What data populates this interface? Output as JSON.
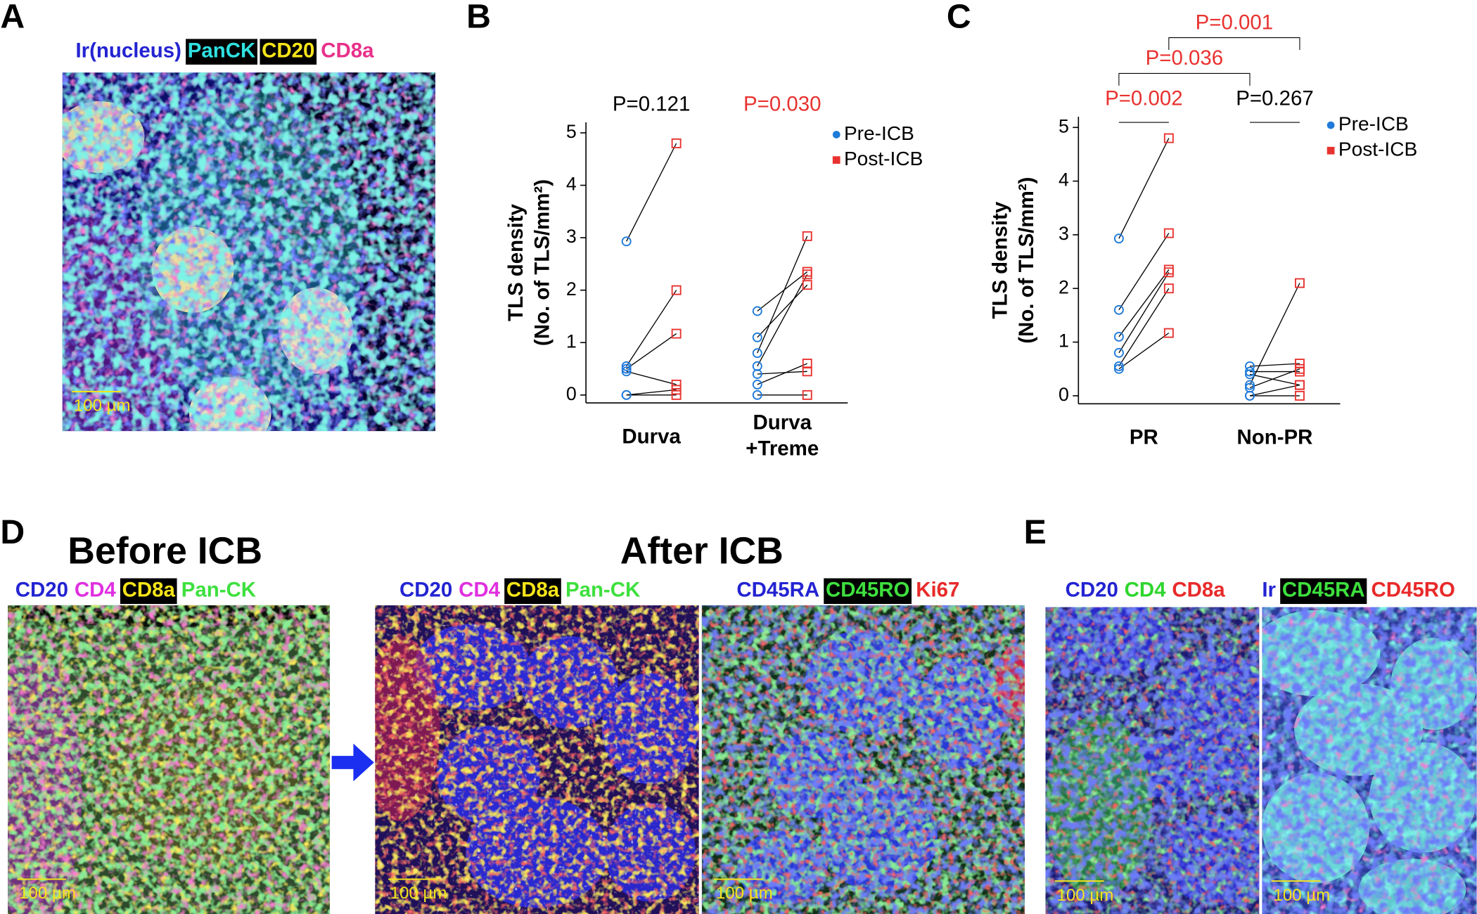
{
  "panel_labels": [
    "A",
    "B",
    "C",
    "D",
    "E"
  ],
  "panel_a": {
    "legend": [
      {
        "text": "Ir(nucleus)",
        "color": "#2323d2"
      },
      {
        "text": "PanCK",
        "color": "#2fe0e0",
        "background": "#000000"
      },
      {
        "text": "CD20",
        "color": "#f5e41a",
        "background": "#000000"
      },
      {
        "text": "CD8a",
        "color": "#e8308a"
      }
    ],
    "scale_bar": "100 µm"
  },
  "panel_d": {
    "before_title": "Before ICB",
    "after_title": "After ICB",
    "before_legend": [
      {
        "text": "CD20",
        "color": "#2323d2"
      },
      {
        "text": "CD4",
        "color": "#e02fe0"
      },
      {
        "text": "CD8a",
        "color": "#f5e41a",
        "background": "#000000"
      },
      {
        "text": "Pan-CK",
        "color": "#3ee03e"
      }
    ],
    "after_legend_1": [
      {
        "text": "CD20",
        "color": "#2323d2"
      },
      {
        "text": "CD4",
        "color": "#e02fe0"
      },
      {
        "text": "CD8a",
        "color": "#f5e41a",
        "background": "#000000"
      },
      {
        "text": "Pan-CK",
        "color": "#3ee03e"
      }
    ],
    "after_legend_2": [
      {
        "text": "CD45RA",
        "color": "#2323d2"
      },
      {
        "text": "CD45RO",
        "color": "#3ee03e",
        "background": "#000000"
      },
      {
        "text": "Ki67",
        "color": "#e82a2a"
      }
    ],
    "scale_bars": [
      "100 µm",
      "100 µm",
      "100 µm"
    ]
  },
  "panel_e": {
    "legend_1": [
      {
        "text": "CD20",
        "color": "#2323d2"
      },
      {
        "text": "CD4",
        "color": "#2fd62f"
      },
      {
        "text": "CD8a",
        "color": "#e82a2a"
      }
    ],
    "legend_2": [
      {
        "text": "Ir",
        "color": "#2323d2"
      },
      {
        "text": "CD45RA",
        "color": "#3ee03e",
        "background": "#000000"
      },
      {
        "text": "CD45RO",
        "color": "#e82a2a"
      }
    ],
    "scale_bars": [
      "100 µm",
      "100 µm"
    ]
  },
  "chart_data": [
    {
      "type": "slope",
      "y_label": [
        "TLS density",
        "(No. of TLS/mm²)"
      ],
      "categories": [
        [
          "Durva"
        ],
        [
          "Durva",
          "+Treme"
        ]
      ],
      "series": [
        {
          "name": "Pre-ICB",
          "color": "#1f7ad9",
          "marker": "circle",
          "values": [
            [
              2.93,
              0.55,
              0.5,
              0.45,
              0,
              0
            ],
            [
              1.6,
              1.1,
              0.8,
              0.55,
              0.4,
              0.2,
              0
            ]
          ]
        },
        {
          "name": "Post-ICB",
          "color": "#e8322f",
          "marker": "square",
          "values": [
            [
              4.8,
              2.0,
              1.17,
              0.2,
              0.1,
              0
            ],
            [
              2.35,
              2.1,
              3.03,
              2.3,
              0.45,
              0.6,
              0
            ]
          ]
        }
      ],
      "pvalues": [
        {
          "text": "P=0.121",
          "color": "#000000"
        },
        {
          "text": "P=0.030",
          "color": "#e8322f"
        }
      ],
      "ylim": [
        -0.15,
        5.2
      ],
      "yticks": [
        0,
        1,
        2,
        3,
        4,
        5
      ],
      "legend": "upper right"
    },
    {
      "type": "slope",
      "y_label": [
        "TLS density",
        "(No. of TLS/mm²)"
      ],
      "categories": [
        [
          "PR"
        ],
        [
          "Non-PR"
        ]
      ],
      "series": [
        {
          "name": "Pre-ICB",
          "color": "#1f7ad9",
          "marker": "circle",
          "values": [
            [
              2.93,
              1.6,
              1.1,
              0.8,
              0.55,
              0.5
            ],
            [
              0.55,
              0.45,
              0.4,
              0.2,
              0.15,
              0,
              0
            ]
          ]
        },
        {
          "name": "Post-ICB",
          "color": "#e8322f",
          "marker": "square",
          "values": [
            [
              4.8,
              3.03,
              2.35,
              2.3,
              2.0,
              1.17
            ],
            [
              0.6,
              0.45,
              0.2,
              2.1,
              0.5,
              0,
              0.2
            ]
          ]
        }
      ],
      "pvalues": [
        {
          "text": "P=0.002",
          "color": "#e8322f"
        },
        {
          "text": "P=0.267",
          "color": "#000000"
        }
      ],
      "comparisons": [
        {
          "text": "P=0.036",
          "color": "#e8322f",
          "series": 0
        },
        {
          "text": "P=0.001",
          "color": "#e8322f",
          "series": 1
        }
      ],
      "ylim": [
        -0.15,
        5.2
      ],
      "yticks": [
        0,
        1,
        2,
        3,
        4,
        5
      ],
      "legend": "upper right"
    }
  ]
}
